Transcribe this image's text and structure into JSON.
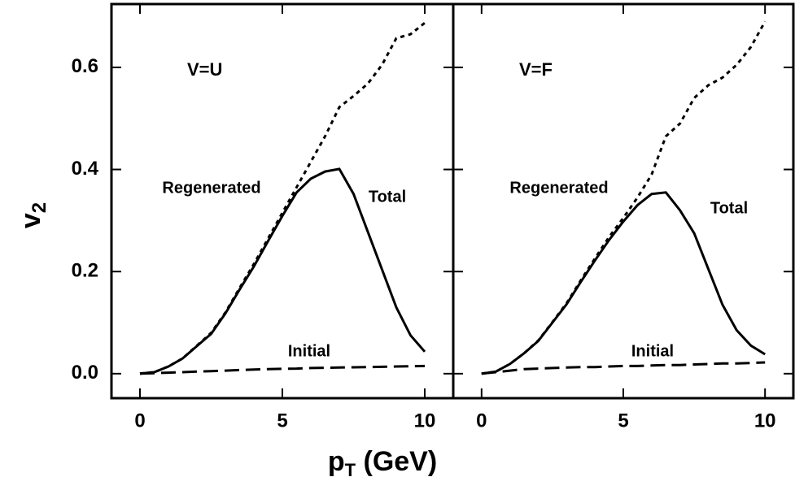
{
  "chart_data": [
    {
      "type": "line",
      "title": "V=U",
      "xlabel": [
        "p",
        "T",
        " (GeV)"
      ],
      "ylabel": [
        "v",
        "2"
      ],
      "x": [
        0,
        0.5,
        1,
        1.5,
        2,
        2.5,
        3,
        3.5,
        4,
        4.5,
        5,
        5.5,
        6,
        6.5,
        7,
        7.5,
        8,
        8.5,
        9,
        9.5,
        10
      ],
      "series": [
        {
          "name": "Total",
          "color": "#000000",
          "dash": "solid",
          "values": [
            0,
            0.003,
            0.014,
            0.03,
            0.054,
            0.078,
            0.118,
            0.165,
            0.21,
            0.26,
            0.309,
            0.355,
            0.382,
            0.396,
            0.401,
            0.352,
            0.278,
            0.204,
            0.13,
            0.075,
            0.043
          ]
        },
        {
          "name": "Regenerated",
          "color": "#000000",
          "dash": "dotted",
          "values": [
            0,
            0.003,
            0.014,
            0.03,
            0.055,
            0.08,
            0.12,
            0.168,
            0.215,
            0.265,
            0.315,
            0.365,
            0.415,
            0.465,
            0.522,
            0.544,
            0.568,
            0.605,
            0.657,
            0.665,
            0.687
          ]
        },
        {
          "name": "Initial",
          "color": "#000000",
          "dash": "dashed",
          "values": [
            0,
            0.001,
            0.002,
            0.003,
            0.004,
            0.005,
            0.006,
            0.007,
            0.008,
            0.009,
            0.0095,
            0.01,
            0.011,
            0.0115,
            0.012,
            0.0125,
            0.013,
            0.0135,
            0.014,
            0.0145,
            0.015
          ]
        }
      ],
      "xlim": [
        -1,
        11
      ],
      "ylim": [
        -0.048,
        0.724
      ],
      "xticks": [
        0,
        5,
        10
      ],
      "yticks": [
        {
          "value": 0,
          "label": "0.0"
        },
        0.2,
        0.4,
        0.6
      ]
    },
    {
      "type": "line",
      "title": "V=F",
      "x": [
        0,
        0.5,
        1,
        1.5,
        2,
        2.5,
        3,
        3.5,
        4,
        4.5,
        5,
        5.5,
        6,
        6.5,
        7,
        7.5,
        8,
        8.5,
        9,
        9.5,
        10
      ],
      "series": [
        {
          "name": "Total",
          "color": "#000000",
          "dash": "solid",
          "values": [
            0,
            0.004,
            0.019,
            0.04,
            0.064,
            0.1,
            0.136,
            0.18,
            0.222,
            0.262,
            0.298,
            0.33,
            0.352,
            0.355,
            0.32,
            0.275,
            0.205,
            0.135,
            0.085,
            0.055,
            0.038
          ]
        },
        {
          "name": "Regenerated",
          "color": "#000000",
          "dash": "dotted",
          "values": [
            0,
            0.004,
            0.019,
            0.04,
            0.065,
            0.101,
            0.138,
            0.183,
            0.226,
            0.268,
            0.305,
            0.345,
            0.39,
            0.465,
            0.49,
            0.54,
            0.565,
            0.58,
            0.605,
            0.64,
            0.69
          ]
        },
        {
          "name": "Initial",
          "color": "#000000",
          "dash": "dashed",
          "values": [
            0,
            0.003,
            0.006,
            0.009,
            0.01,
            0.011,
            0.012,
            0.013,
            0.013,
            0.014,
            0.015,
            0.015,
            0.016,
            0.017,
            0.017,
            0.018,
            0.019,
            0.02,
            0.02,
            0.021,
            0.022
          ]
        }
      ],
      "xlim": [
        -1,
        11
      ],
      "ylim": [
        -0.048,
        0.724
      ],
      "xticks": [
        0,
        5,
        10
      ],
      "yticks": [
        0,
        0.2,
        0.4,
        0.6
      ]
    }
  ]
}
